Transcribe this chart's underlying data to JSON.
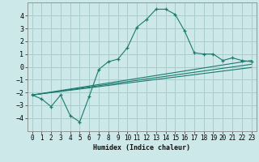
{
  "xlabel": "Humidex (Indice chaleur)",
  "ylabel": "",
  "background_color": "#cce8e8",
  "grid_color": "#aacccc",
  "line_color": "#1a7a6e",
  "xlim": [
    -0.5,
    23.5
  ],
  "ylim": [
    -5,
    5
  ],
  "yticks": [
    -4,
    -3,
    -2,
    -1,
    0,
    1,
    2,
    3,
    4
  ],
  "xticks": [
    0,
    1,
    2,
    3,
    4,
    5,
    6,
    7,
    8,
    9,
    10,
    11,
    12,
    13,
    14,
    15,
    16,
    17,
    18,
    19,
    20,
    21,
    22,
    23
  ],
  "series": [
    {
      "x": [
        0,
        1,
        2,
        3,
        4,
        5,
        6,
        7,
        8,
        9,
        10,
        11,
        12,
        13,
        14,
        15,
        16,
        17,
        18,
        19,
        20,
        21,
        22,
        23
      ],
      "y": [
        -2.2,
        -2.5,
        -3.1,
        -2.2,
        -3.8,
        -4.3,
        -2.3,
        -0.2,
        0.4,
        0.6,
        1.5,
        3.1,
        3.7,
        4.5,
        4.5,
        4.1,
        2.8,
        1.1,
        1.0,
        1.0,
        0.5,
        0.7,
        0.5,
        0.4
      ],
      "marker": true
    },
    {
      "x": [
        0,
        23
      ],
      "y": [
        -2.2,
        0.5
      ],
      "marker": false
    },
    {
      "x": [
        0,
        23
      ],
      "y": [
        -2.2,
        0.2
      ],
      "marker": false
    },
    {
      "x": [
        0,
        23
      ],
      "y": [
        -2.2,
        -0.05
      ],
      "marker": false
    }
  ]
}
